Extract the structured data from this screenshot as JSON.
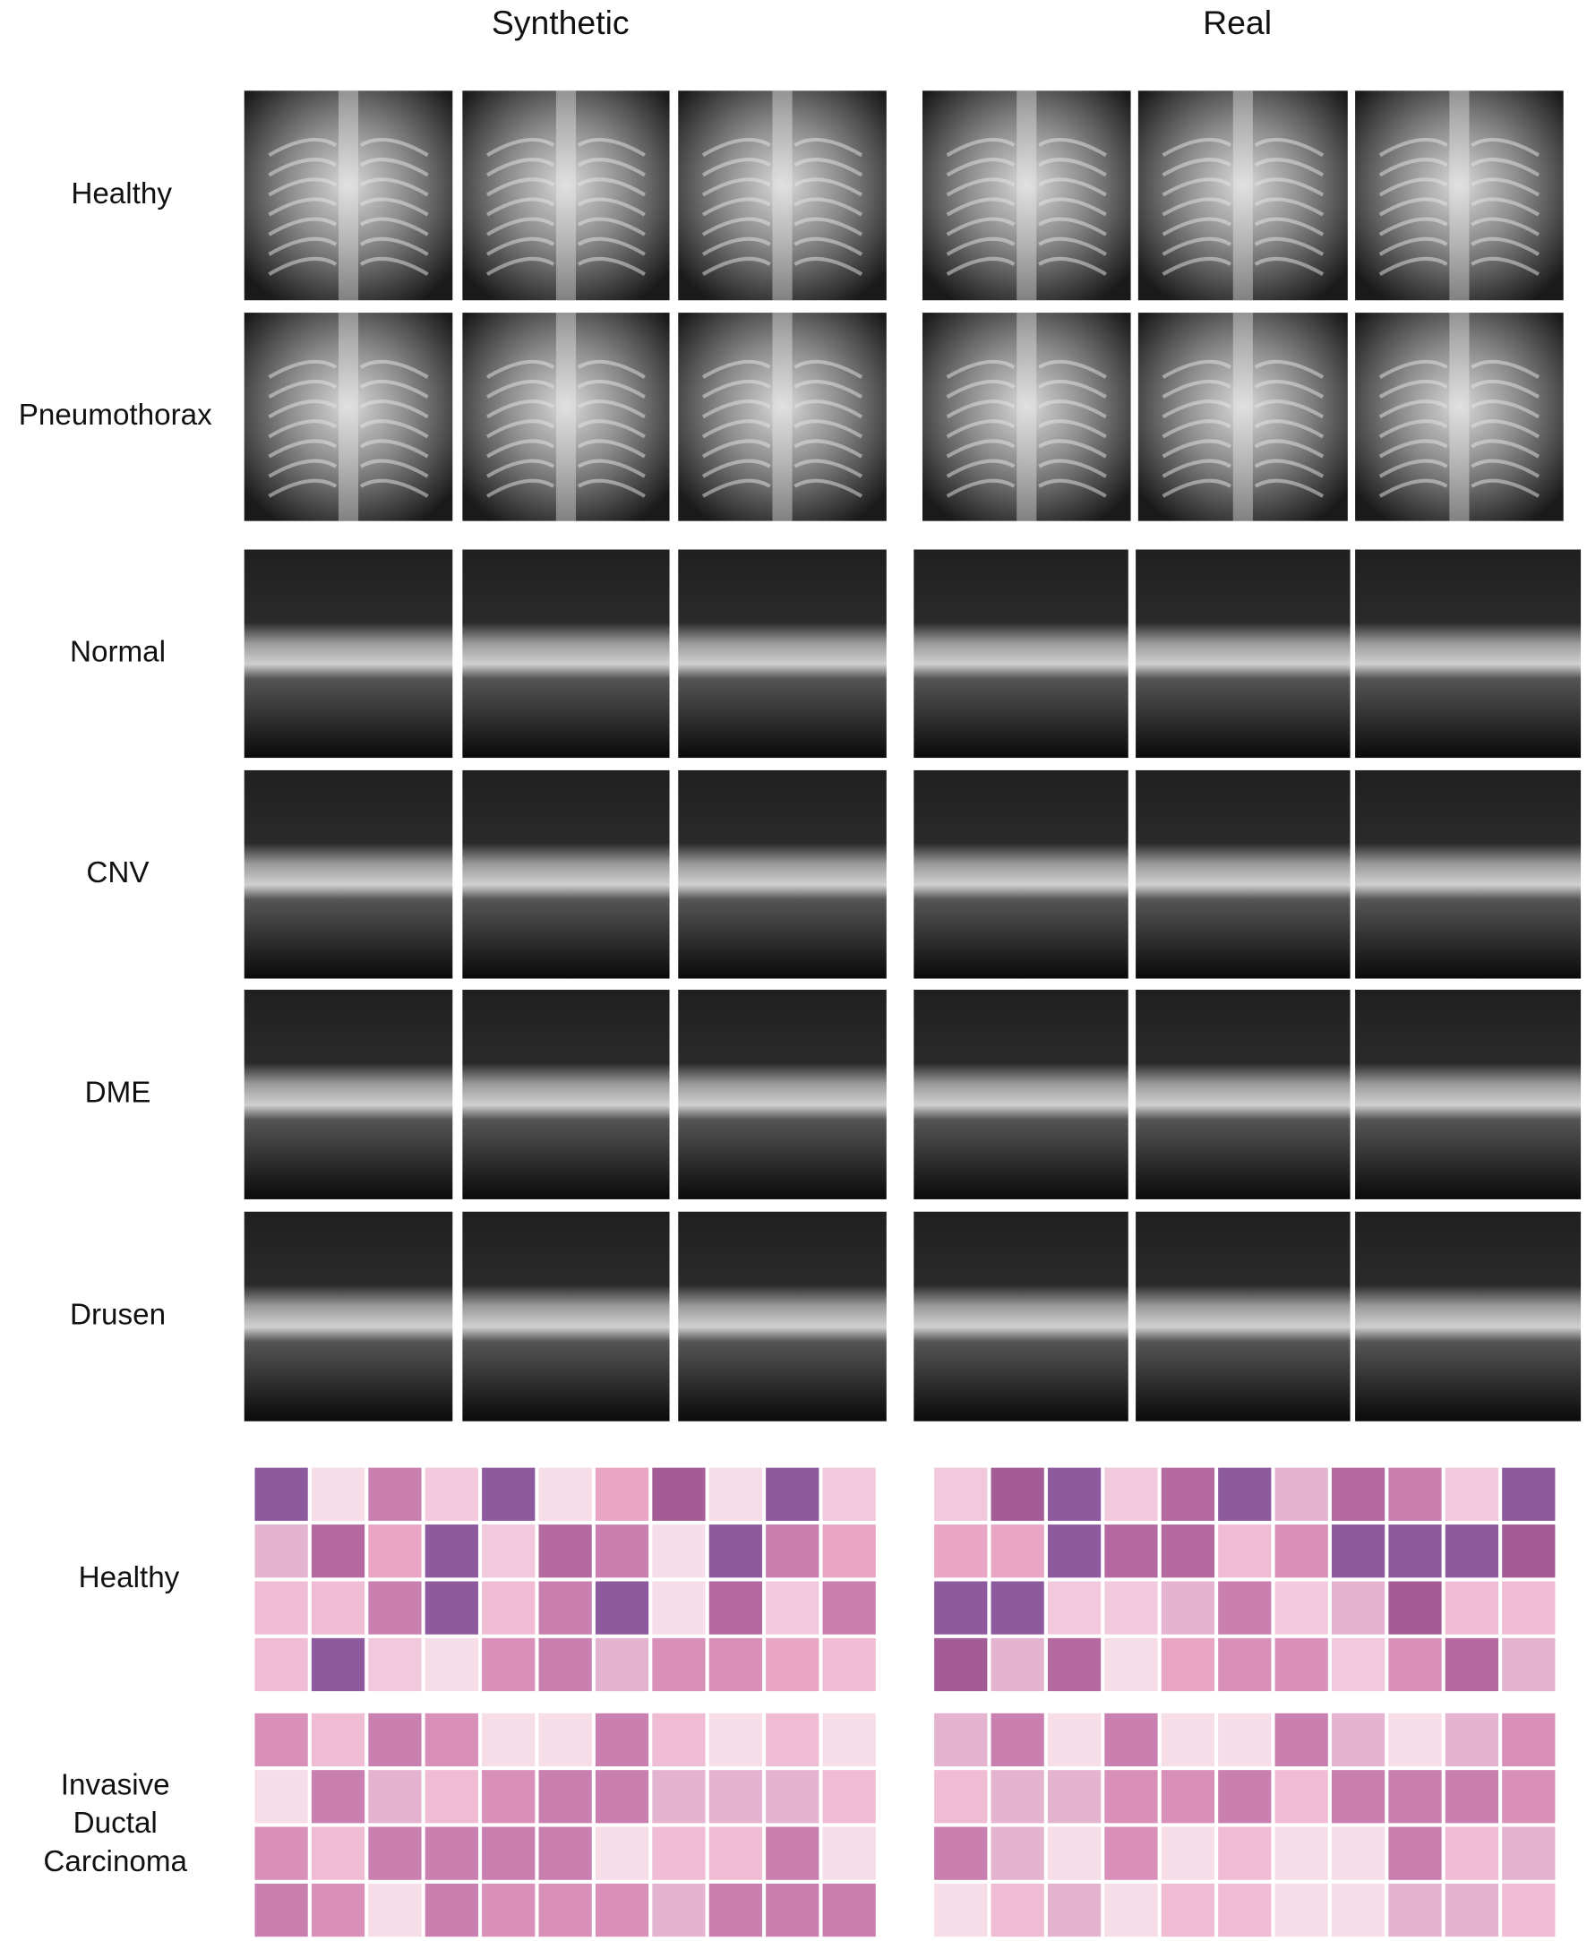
{
  "column_headers": [
    "Synthetic",
    "Real"
  ],
  "xray_rows": [
    {
      "label": "Healthy"
    },
    {
      "label": "Pneumothorax"
    }
  ],
  "oct_rows": [
    {
      "label": "Normal"
    },
    {
      "label": "CNV"
    },
    {
      "label": "DME"
    },
    {
      "label": "Drusen"
    }
  ],
  "histology_rows": [
    {
      "label_lines": [
        "Healthy"
      ]
    },
    {
      "label_lines": [
        "Invasive",
        "Ductal",
        "Carcinoma"
      ]
    }
  ]
}
